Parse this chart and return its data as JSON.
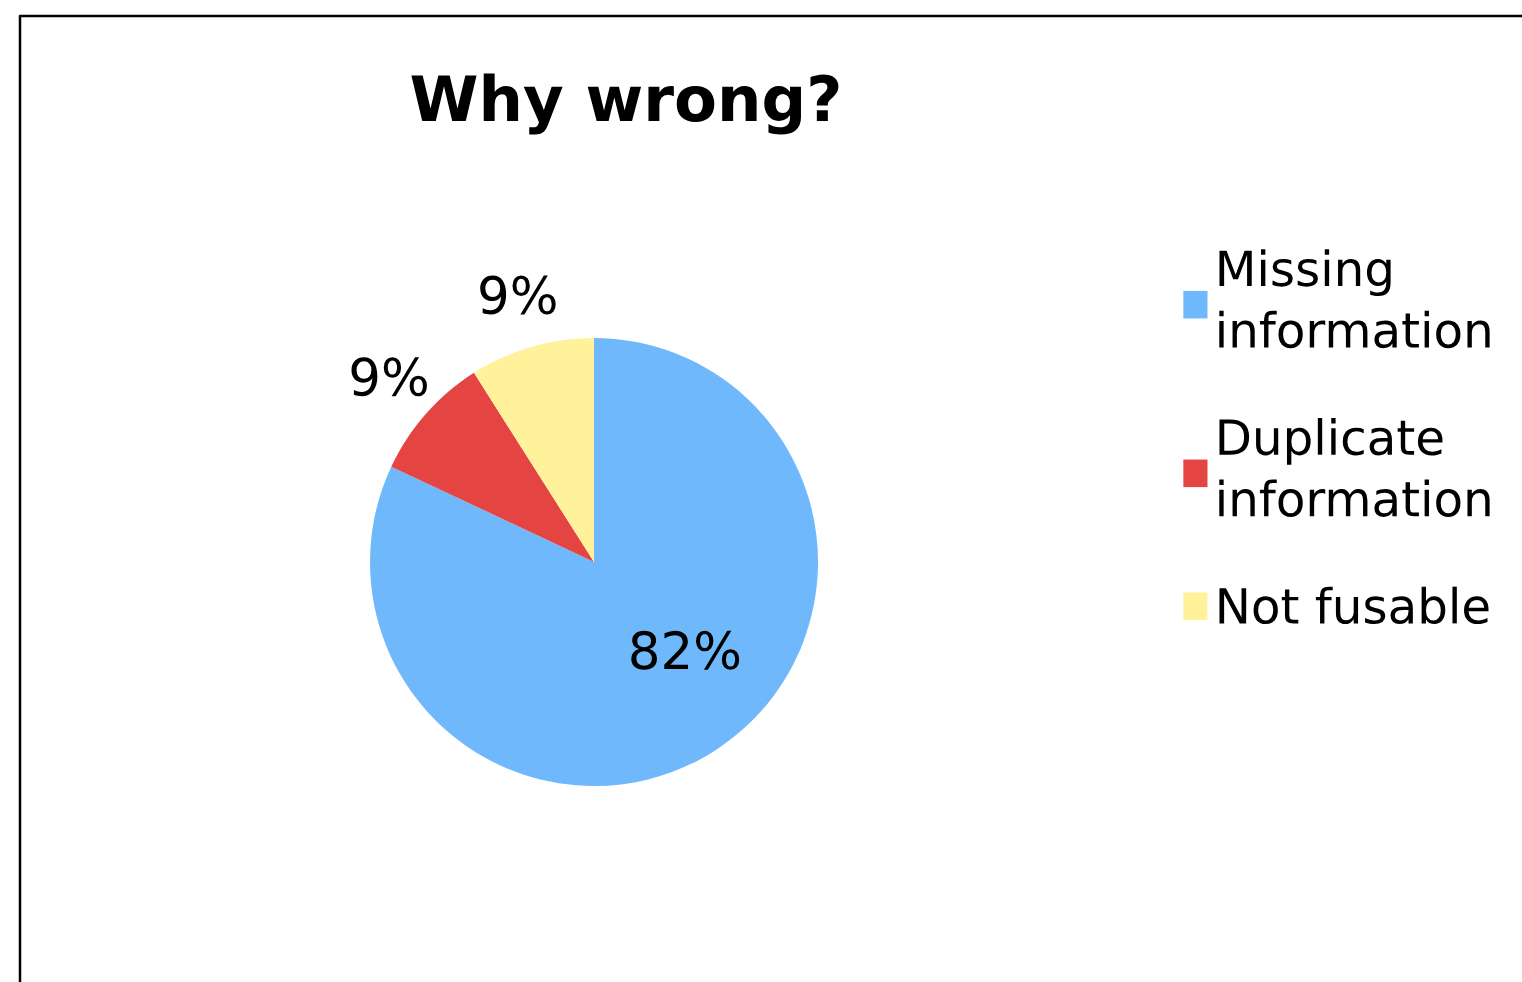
{
  "chart_data": {
    "type": "pie",
    "title": "Why wrong?",
    "categories": [
      "Missing\ninformation",
      "Duplicate\ninformation",
      "Not fusable"
    ],
    "values": [
      82,
      9,
      9
    ],
    "colors": [
      "#6fb8fb",
      "#e54542",
      "#fff29a"
    ],
    "value_labels": [
      "82%",
      "9%",
      "9%"
    ],
    "legend": "right"
  }
}
